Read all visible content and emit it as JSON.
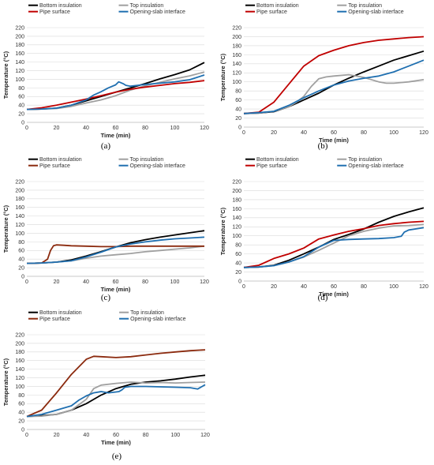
{
  "figure": {
    "panels": [
      {
        "id": "a",
        "caption": "(a)"
      },
      {
        "id": "b",
        "caption": "(b)"
      },
      {
        "id": "c",
        "caption": "(c)"
      },
      {
        "id": "d",
        "caption": "(d)"
      },
      {
        "id": "e",
        "caption": "(e)"
      }
    ]
  },
  "chart_data": [
    {
      "type": "line",
      "panel": "a",
      "xlabel": "Time (min)",
      "ylabel": "Temperature (°C)",
      "xlim": [
        0,
        120
      ],
      "ylim": [
        0,
        220
      ],
      "xticks": [
        0,
        20,
        40,
        60,
        80,
        100,
        120
      ],
      "yticks": [
        0,
        20,
        40,
        60,
        80,
        100,
        120,
        140,
        160,
        180,
        200,
        220
      ],
      "grid": true,
      "legend_position": "top",
      "series": [
        {
          "name": "Bottom insulation",
          "color": "#000000",
          "x": [
            0,
            10,
            20,
            30,
            40,
            50,
            60,
            70,
            80,
            90,
            100,
            110,
            120
          ],
          "y": [
            30,
            31,
            33,
            40,
            50,
            60,
            70,
            80,
            90,
            101,
            111,
            122,
            139
          ]
        },
        {
          "name": "Top insulation",
          "color": "#a0a0a0",
          "x": [
            0,
            10,
            20,
            30,
            40,
            50,
            60,
            70,
            80,
            90,
            100,
            110,
            120
          ],
          "y": [
            30,
            31,
            32,
            37,
            45,
            52,
            62,
            75,
            85,
            93,
            101,
            108,
            117
          ]
        },
        {
          "name": "Pipe surface",
          "color": "#c00000",
          "x": [
            0,
            10,
            20,
            30,
            40,
            50,
            60,
            70,
            80,
            90,
            100,
            110,
            120
          ],
          "y": [
            30,
            34,
            40,
            47,
            54,
            62,
            70,
            77,
            82,
            86,
            90,
            93,
            97
          ]
        },
        {
          "name": "Opening-slab interface",
          "color": "#1f6fb0",
          "x": [
            0,
            10,
            20,
            30,
            40,
            45,
            50,
            55,
            60,
            62,
            63,
            65,
            67,
            70,
            80,
            90,
            100,
            110,
            120
          ],
          "y": [
            30,
            31,
            33,
            40,
            52,
            63,
            71,
            80,
            87,
            94,
            93,
            90,
            86,
            84,
            88,
            91,
            94,
            99,
            110
          ]
        }
      ]
    },
    {
      "type": "line",
      "panel": "b",
      "xlabel": "Time (min)",
      "ylabel": "Temperature (°C)",
      "xlim": [
        0,
        120
      ],
      "ylim": [
        0,
        220
      ],
      "xticks": [
        0,
        20,
        40,
        60,
        80,
        100,
        120
      ],
      "yticks": [
        0,
        20,
        40,
        60,
        80,
        100,
        120,
        140,
        160,
        180,
        200,
        220
      ],
      "grid": true,
      "legend_position": "top",
      "series": [
        {
          "name": "Bottom insulation",
          "color": "#000000",
          "x": [
            0,
            10,
            20,
            30,
            40,
            50,
            60,
            70,
            80,
            90,
            100,
            110,
            120
          ],
          "y": [
            30,
            31,
            34,
            45,
            60,
            75,
            93,
            108,
            122,
            135,
            148,
            158,
            168
          ]
        },
        {
          "name": "Top insulation",
          "color": "#a0a0a0",
          "x": [
            0,
            10,
            20,
            30,
            35,
            40,
            45,
            50,
            55,
            60,
            70,
            80,
            90,
            95,
            100,
            110,
            120
          ],
          "y": [
            30,
            31,
            35,
            45,
            55,
            68,
            90,
            107,
            111,
            113,
            116,
            110,
            100,
            97,
            97,
            100,
            105
          ]
        },
        {
          "name": "Pipe surface",
          "color": "#c00000",
          "x": [
            0,
            10,
            20,
            30,
            40,
            50,
            60,
            70,
            80,
            90,
            100,
            110,
            120
          ],
          "y": [
            30,
            33,
            55,
            95,
            135,
            158,
            170,
            180,
            187,
            192,
            195,
            198,
            200
          ]
        },
        {
          "name": "Opening-slab interface",
          "color": "#1f6fb0",
          "x": [
            0,
            10,
            20,
            30,
            40,
            50,
            60,
            70,
            80,
            90,
            100,
            110,
            120
          ],
          "y": [
            30,
            32,
            35,
            48,
            65,
            80,
            93,
            102,
            108,
            113,
            122,
            135,
            148
          ]
        }
      ]
    },
    {
      "type": "line",
      "panel": "c",
      "xlabel": "Time (min)",
      "ylabel": "Temperature (°C)",
      "xlim": [
        0,
        120
      ],
      "ylim": [
        0,
        220
      ],
      "xticks": [
        0,
        20,
        40,
        60,
        80,
        100,
        120
      ],
      "yticks": [
        0,
        20,
        40,
        60,
        80,
        100,
        120,
        140,
        160,
        180,
        200,
        220
      ],
      "grid": true,
      "legend_position": "top",
      "series": [
        {
          "name": "Bottom insulation",
          "color": "#000000",
          "x": [
            0,
            10,
            20,
            30,
            40,
            50,
            60,
            70,
            80,
            90,
            100,
            110,
            120
          ],
          "y": [
            30,
            31,
            33,
            38,
            47,
            57,
            68,
            78,
            85,
            91,
            96,
            101,
            106
          ]
        },
        {
          "name": "Top insulation",
          "color": "#a0a0a0",
          "x": [
            0,
            10,
            20,
            30,
            40,
            50,
            60,
            70,
            80,
            90,
            100,
            110,
            120
          ],
          "y": [
            30,
            31,
            33,
            36,
            42,
            47,
            50,
            53,
            57,
            60,
            63,
            66,
            70
          ]
        },
        {
          "name": "Pipe surface",
          "color": "#8b2a0e",
          "x": [
            0,
            10,
            14,
            16,
            18,
            20,
            25,
            30,
            40,
            50,
            60,
            70,
            80,
            90,
            100,
            110,
            120
          ],
          "y": [
            30,
            31,
            40,
            60,
            71,
            73,
            72,
            71,
            70,
            69,
            69,
            70,
            70,
            70,
            70,
            70,
            70
          ]
        },
        {
          "name": "Opening-slab interface",
          "color": "#1f6fb0",
          "x": [
            0,
            10,
            20,
            30,
            40,
            50,
            60,
            70,
            80,
            90,
            100,
            110,
            120
          ],
          "y": [
            30,
            31,
            33,
            36,
            45,
            56,
            68,
            75,
            80,
            84,
            87,
            89,
            91
          ]
        }
      ]
    },
    {
      "type": "line",
      "panel": "d",
      "xlabel": "Time (min)",
      "ylabel": "Temperature (°C)",
      "xlim": [
        0,
        120
      ],
      "ylim": [
        0,
        220
      ],
      "xticks": [
        0,
        20,
        40,
        60,
        80,
        100,
        120
      ],
      "yticks": [
        0,
        20,
        40,
        60,
        80,
        100,
        120,
        140,
        160,
        180,
        200,
        220
      ],
      "grid": true,
      "legend_position": "top",
      "series": [
        {
          "name": "Bottom insulation",
          "color": "#000000",
          "x": [
            0,
            10,
            20,
            30,
            40,
            50,
            60,
            70,
            80,
            90,
            100,
            110,
            120
          ],
          "y": [
            30,
            31,
            35,
            46,
            60,
            75,
            92,
            103,
            115,
            130,
            143,
            153,
            162
          ]
        },
        {
          "name": "Top insulation",
          "color": "#a0a0a0",
          "x": [
            0,
            10,
            20,
            30,
            40,
            50,
            60,
            70,
            80,
            90,
            100,
            110,
            120
          ],
          "y": [
            30,
            31,
            34,
            42,
            53,
            68,
            84,
            100,
            110,
            117,
            122,
            123,
            125
          ]
        },
        {
          "name": "Pipe surface",
          "color": "#c00000",
          "x": [
            0,
            10,
            20,
            30,
            40,
            50,
            60,
            70,
            80,
            90,
            100,
            110,
            120
          ],
          "y": [
            30,
            35,
            50,
            60,
            73,
            93,
            102,
            110,
            116,
            123,
            127,
            130,
            132
          ]
        },
        {
          "name": "Opening-slab interface",
          "color": "#1f6fb0",
          "x": [
            0,
            10,
            20,
            30,
            40,
            50,
            60,
            70,
            80,
            90,
            100,
            105,
            107,
            110,
            120
          ],
          "y": [
            30,
            31,
            34,
            42,
            54,
            75,
            90,
            92,
            93,
            94,
            96,
            99,
            108,
            113,
            118
          ]
        }
      ]
    },
    {
      "type": "line",
      "panel": "e",
      "xlabel": "Time (min)",
      "ylabel": "Temperature (°C)",
      "xlim": [
        0,
        120
      ],
      "ylim": [
        0,
        220
      ],
      "xticks": [
        0,
        20,
        40,
        60,
        80,
        100,
        120
      ],
      "yticks": [
        0,
        20,
        40,
        60,
        80,
        100,
        120,
        140,
        160,
        180,
        200,
        220
      ],
      "grid": true,
      "legend_position": "top",
      "series": [
        {
          "name": "Bottom insulation",
          "color": "#000000",
          "x": [
            0,
            10,
            20,
            30,
            40,
            50,
            60,
            70,
            80,
            90,
            100,
            110,
            120
          ],
          "y": [
            30,
            32,
            35,
            45,
            60,
            80,
            95,
            105,
            110,
            113,
            117,
            122,
            126
          ]
        },
        {
          "name": "Top insulation",
          "color": "#a0a0a0",
          "x": [
            0,
            10,
            20,
            30,
            40,
            45,
            50,
            60,
            70,
            80,
            90,
            100,
            110,
            120
          ],
          "y": [
            30,
            31,
            35,
            45,
            70,
            95,
            103,
            107,
            110,
            108,
            109,
            108,
            109,
            110
          ]
        },
        {
          "name": "Pipe surface",
          "color": "#8b2a0e",
          "x": [
            0,
            10,
            20,
            30,
            40,
            45,
            50,
            60,
            70,
            80,
            90,
            100,
            110,
            120
          ],
          "y": [
            30,
            45,
            85,
            128,
            163,
            170,
            169,
            167,
            169,
            173,
            177,
            180,
            183,
            185
          ]
        },
        {
          "name": "Opening-slab interface",
          "color": "#1f6fb0",
          "x": [
            0,
            10,
            20,
            25,
            30,
            35,
            40,
            45,
            50,
            55,
            60,
            62,
            64,
            66,
            70,
            80,
            90,
            100,
            110,
            115,
            120
          ],
          "y": [
            30,
            35,
            45,
            50,
            55,
            68,
            78,
            85,
            88,
            85,
            87,
            88,
            92,
            98,
            100,
            100,
            99,
            98,
            97,
            94,
            104
          ]
        }
      ]
    }
  ]
}
